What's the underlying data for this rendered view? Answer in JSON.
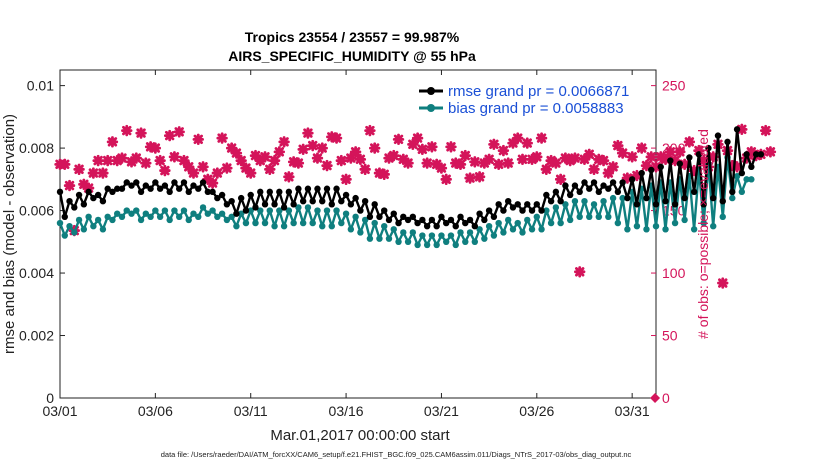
{
  "chart_data": {
    "type": "line",
    "title_line1": "Tropics 23554 / 23557 = 99.987%",
    "title_line2": "AIRS_SPECIFIC_HUMIDITY @ 55 hPa",
    "xlabel": "Mar.01,2017 00:00:00 start",
    "ylabel": "rmse and bias (model - observation)",
    "ylabel_right": "# of obs: o=possible; ×=evaluated",
    "footer": "data file: /Users/raeder/DAI/ATM_forcXX/CAM6_setup/f.e21.FHIST_BGC.f09_025.CAM6assim.011/Diags_NTrS_2017-03/obs_diag_output.nc",
    "xlim": [
      0,
      31.25
    ],
    "ylim": [
      0,
      0.0105
    ],
    "ylim_right": [
      0,
      262.5
    ],
    "x_ticks": [
      0,
      5,
      10,
      15,
      20,
      25,
      30
    ],
    "x_tick_labels": [
      "03/01",
      "03/06",
      "03/11",
      "03/16",
      "03/21",
      "03/26",
      "03/31"
    ],
    "y_ticks": [
      0,
      0.002,
      0.004,
      0.006,
      0.008,
      0.01
    ],
    "y_tick_labels": [
      "0",
      "0.002",
      "0.004",
      "0.006",
      "0.008",
      "0.01"
    ],
    "y_right_ticks": [
      0,
      50,
      100,
      150,
      200,
      250
    ],
    "y_right_tick_labels": [
      "0",
      "50",
      "100",
      "150",
      "200",
      "250"
    ],
    "legend": {
      "rmse": "rmse grand pr = 0.0066871",
      "bias": "bias grand pr = 0.0058883"
    },
    "colors": {
      "rmse": "#000000",
      "bias": "#0f7f7f",
      "obs": "#d4145a"
    },
    "series": [
      {
        "name": "rmse",
        "step": 0.25,
        "values": [
          0.0066,
          0.0058,
          0.0063,
          0.0061,
          0.0065,
          0.0062,
          0.0066,
          0.0064,
          0.0065,
          0.0063,
          0.0067,
          0.0066,
          0.0067,
          0.0067,
          0.0069,
          0.0068,
          0.0069,
          0.0066,
          0.0068,
          0.0067,
          0.0069,
          0.0067,
          0.0068,
          0.0066,
          0.0069,
          0.0067,
          0.0069,
          0.0066,
          0.0068,
          0.0067,
          0.0069,
          0.0066,
          0.0066,
          0.0064,
          0.0065,
          0.0062,
          0.0063,
          0.0059,
          0.0064,
          0.006,
          0.0065,
          0.0061,
          0.0066,
          0.0062,
          0.0066,
          0.0062,
          0.0066,
          0.0061,
          0.0066,
          0.0062,
          0.0067,
          0.0063,
          0.0067,
          0.0063,
          0.0067,
          0.0063,
          0.0067,
          0.0062,
          0.0067,
          0.0063,
          0.0065,
          0.0062,
          0.0064,
          0.006,
          0.0063,
          0.0058,
          0.0062,
          0.0058,
          0.006,
          0.0057,
          0.0059,
          0.0056,
          0.0058,
          0.0057,
          0.0058,
          0.0056,
          0.0057,
          0.0055,
          0.0057,
          0.0055,
          0.0058,
          0.0056,
          0.0057,
          0.0055,
          0.0058,
          0.0056,
          0.0057,
          0.0055,
          0.0059,
          0.0057,
          0.006,
          0.0058,
          0.0062,
          0.006,
          0.0063,
          0.0061,
          0.0062,
          0.006,
          0.0062,
          0.006,
          0.0062,
          0.006,
          0.0065,
          0.0063,
          0.0066,
          0.0063,
          0.0068,
          0.0065,
          0.0068,
          0.0066,
          0.0069,
          0.0067,
          0.0069,
          0.0066,
          0.0068,
          0.0067,
          0.0069,
          0.0066,
          0.0069,
          0.0064,
          0.007,
          0.0062,
          0.0072,
          0.0064,
          0.0073,
          0.0062,
          0.0074,
          0.0063,
          0.0076,
          0.0062,
          0.0075,
          0.0064,
          0.0077,
          0.0066,
          0.0078,
          0.0062,
          0.008,
          0.0064,
          0.0084,
          0.0063,
          0.0082,
          0.0066,
          0.0086,
          0.0072,
          0.0078,
          0.0074,
          0.0078,
          0.0078
        ]
      },
      {
        "name": "bias",
        "step": 0.25,
        "values": [
          0.0056,
          0.0052,
          0.0055,
          0.0053,
          0.0057,
          0.0054,
          0.0058,
          0.0055,
          0.0057,
          0.0054,
          0.0058,
          0.0057,
          0.0059,
          0.0058,
          0.006,
          0.0059,
          0.006,
          0.0057,
          0.0059,
          0.0058,
          0.006,
          0.0058,
          0.006,
          0.0057,
          0.006,
          0.0058,
          0.006,
          0.0057,
          0.0059,
          0.0058,
          0.0061,
          0.0059,
          0.006,
          0.0058,
          0.0059,
          0.0057,
          0.0058,
          0.0055,
          0.0059,
          0.0056,
          0.006,
          0.0056,
          0.006,
          0.0056,
          0.006,
          0.0055,
          0.006,
          0.0055,
          0.006,
          0.0056,
          0.0061,
          0.0056,
          0.0061,
          0.0056,
          0.006,
          0.0055,
          0.006,
          0.0055,
          0.006,
          0.0056,
          0.0059,
          0.0054,
          0.0058,
          0.0053,
          0.0057,
          0.0051,
          0.0056,
          0.0051,
          0.0055,
          0.0051,
          0.0054,
          0.005,
          0.0053,
          0.005,
          0.0053,
          0.0049,
          0.0052,
          0.0049,
          0.0052,
          0.0049,
          0.0052,
          0.005,
          0.0052,
          0.0049,
          0.0053,
          0.005,
          0.0053,
          0.005,
          0.0054,
          0.0051,
          0.0055,
          0.0052,
          0.0056,
          0.0053,
          0.0057,
          0.0054,
          0.0056,
          0.0053,
          0.0057,
          0.0054,
          0.0058,
          0.0054,
          0.006,
          0.0056,
          0.0061,
          0.0056,
          0.0062,
          0.0057,
          0.0063,
          0.0058,
          0.0063,
          0.0058,
          0.0062,
          0.0058,
          0.0063,
          0.0058,
          0.0064,
          0.0056,
          0.0064,
          0.0054,
          0.0066,
          0.0055,
          0.0067,
          0.0054,
          0.0068,
          0.0055,
          0.0069,
          0.0054,
          0.0069,
          0.0056,
          0.007,
          0.0057,
          0.0071,
          0.0054,
          0.0073,
          0.0056,
          0.0075,
          0.0055,
          0.0074,
          0.0058,
          0.0077,
          0.0064,
          0.0071,
          0.0066,
          0.007,
          0.007
        ]
      },
      {
        "name": "obs_evaluated",
        "axis": "right",
        "step": 0.25,
        "values": [
          187,
          187,
          170,
          134,
          183,
          171,
          168,
          180,
          190,
          180,
          190,
          205,
          190,
          192,
          214,
          189,
          192,
          212,
          188,
          201,
          200,
          190,
          182,
          210,
          193,
          213,
          190,
          185,
          180,
          207,
          185,
          175,
          172,
          180,
          208,
          184,
          200,
          196,
          190,
          184,
          180,
          194,
          190,
          193,
          183,
          190,
          197,
          205,
          177,
          189,
          188,
          199,
          212,
          202,
          192,
          200,
          186,
          209,
          208,
          190,
          175,
          192,
          197,
          191,
          183,
          214,
          200,
          180,
          179,
          192,
          194,
          207,
          191,
          188,
          203,
          208,
          199,
          188,
          201,
          187,
          184,
          175,
          201,
          188,
          187,
          194,
          176,
          189,
          177,
          188,
          191,
          203,
          187,
          198,
          188,
          204,
          208,
          191,
          204,
          191,
          193,
          208,
          183,
          190,
          188,
          175,
          192,
          190,
          192,
          101,
          191,
          195,
          183,
          191,
          190,
          180,
          185,
          202,
          196,
          176,
          193,
          178,
          200,
          186,
          193,
          185,
          193,
          191,
          197,
          190,
          197,
          187,
          205,
          182,
          198,
          190,
          185,
          193,
          203,
          92,
          198,
          186,
          185,
          215,
          192,
          197,
          194,
          195,
          214,
          197
        ]
      }
    ],
    "markers": [
      {
        "name": "obs_zero",
        "x": 31.2,
        "y_right": 0
      }
    ]
  }
}
